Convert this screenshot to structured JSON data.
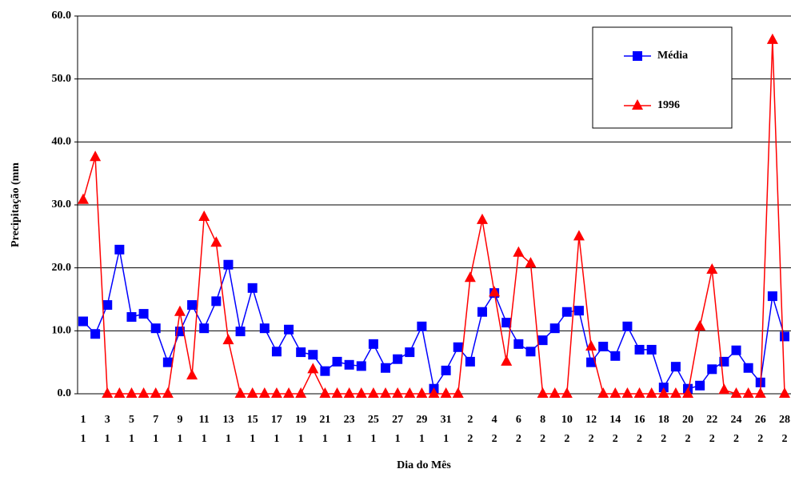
{
  "chart_data": {
    "type": "line",
    "ylabel": "Precipitação (mm",
    "xlabel": "Dia do Mês",
    "categories": [
      [
        "1",
        "1"
      ],
      null,
      [
        "3",
        "1"
      ],
      null,
      [
        "5",
        "1"
      ],
      null,
      [
        "7",
        "1"
      ],
      null,
      [
        "9",
        "1"
      ],
      null,
      [
        "11",
        "1"
      ],
      null,
      [
        "13",
        "1"
      ],
      null,
      [
        "15",
        "1"
      ],
      null,
      [
        "17",
        "1"
      ],
      null,
      [
        "19",
        "1"
      ],
      null,
      [
        "21",
        "1"
      ],
      null,
      [
        "23",
        "1"
      ],
      null,
      [
        "25",
        "1"
      ],
      null,
      [
        "27",
        "1"
      ],
      null,
      [
        "29",
        "1"
      ],
      null,
      [
        "31",
        "1"
      ],
      null,
      [
        "2",
        "2"
      ],
      null,
      [
        "4",
        "2"
      ],
      null,
      [
        "6",
        "2"
      ],
      null,
      [
        "8",
        "2"
      ],
      null,
      [
        "10",
        "2"
      ],
      null,
      [
        "12",
        "2"
      ],
      null,
      [
        "14",
        "2"
      ],
      null,
      [
        "16",
        "2"
      ],
      null,
      [
        "18",
        "2"
      ],
      null,
      [
        "20",
        "2"
      ],
      null,
      [
        "22",
        "2"
      ],
      null,
      [
        "24",
        "2"
      ],
      null,
      [
        "26",
        "2"
      ],
      null,
      [
        "28",
        "2"
      ]
    ],
    "series": [
      {
        "name": "Média",
        "color": "#0000ff",
        "marker": "square",
        "values": [
          11.5,
          9.5,
          14.1,
          22.9,
          12.2,
          12.7,
          10.4,
          5.0,
          9.9,
          14.1,
          10.4,
          14.7,
          20.5,
          9.9,
          16.8,
          10.4,
          6.7,
          10.2,
          6.6,
          6.2,
          3.6,
          5.1,
          4.6,
          4.4,
          7.9,
          4.1,
          5.5,
          6.6,
          10.7,
          0.8,
          3.7,
          7.4,
          5.1,
          13.0,
          16.0,
          11.3,
          7.9,
          6.7,
          8.5,
          10.4,
          13.0,
          13.2,
          5.0,
          7.5,
          6.0,
          10.7,
          7.0,
          7.0,
          1.0,
          4.3,
          0.8,
          1.3,
          3.9,
          5.1,
          6.9,
          4.1,
          1.8,
          15.5,
          9.1
        ]
      },
      {
        "name": "1996",
        "color": "#ff0000",
        "marker": "triangle",
        "values": [
          30.8,
          37.6,
          0,
          0,
          0,
          0,
          0,
          0,
          13.0,
          2.9,
          28.1,
          24.0,
          8.5,
          0,
          0,
          0,
          0,
          0,
          0,
          3.9,
          0,
          0,
          0,
          0,
          0,
          0,
          0,
          0,
          0,
          0,
          0,
          0,
          18.4,
          27.6,
          16.1,
          5.1,
          22.4,
          20.7,
          0,
          0,
          0,
          25.0,
          7.5,
          0,
          0,
          0,
          0,
          0,
          0,
          0,
          0,
          10.7,
          19.7,
          0.6,
          0,
          0,
          0,
          56.2,
          0
        ]
      }
    ],
    "ylim": [
      0,
      60
    ],
    "yticks": [
      {
        "value": 0,
        "label": "0.0"
      },
      {
        "value": 10,
        "label": "10.0"
      },
      {
        "value": 20,
        "label": "20.0"
      },
      {
        "value": 30,
        "label": "30.0"
      },
      {
        "value": 40,
        "label": "40.0"
      },
      {
        "value": 50,
        "label": "50.0"
      },
      {
        "value": 60,
        "label": "60.0"
      }
    ],
    "grid": true,
    "legend": "upper right"
  }
}
